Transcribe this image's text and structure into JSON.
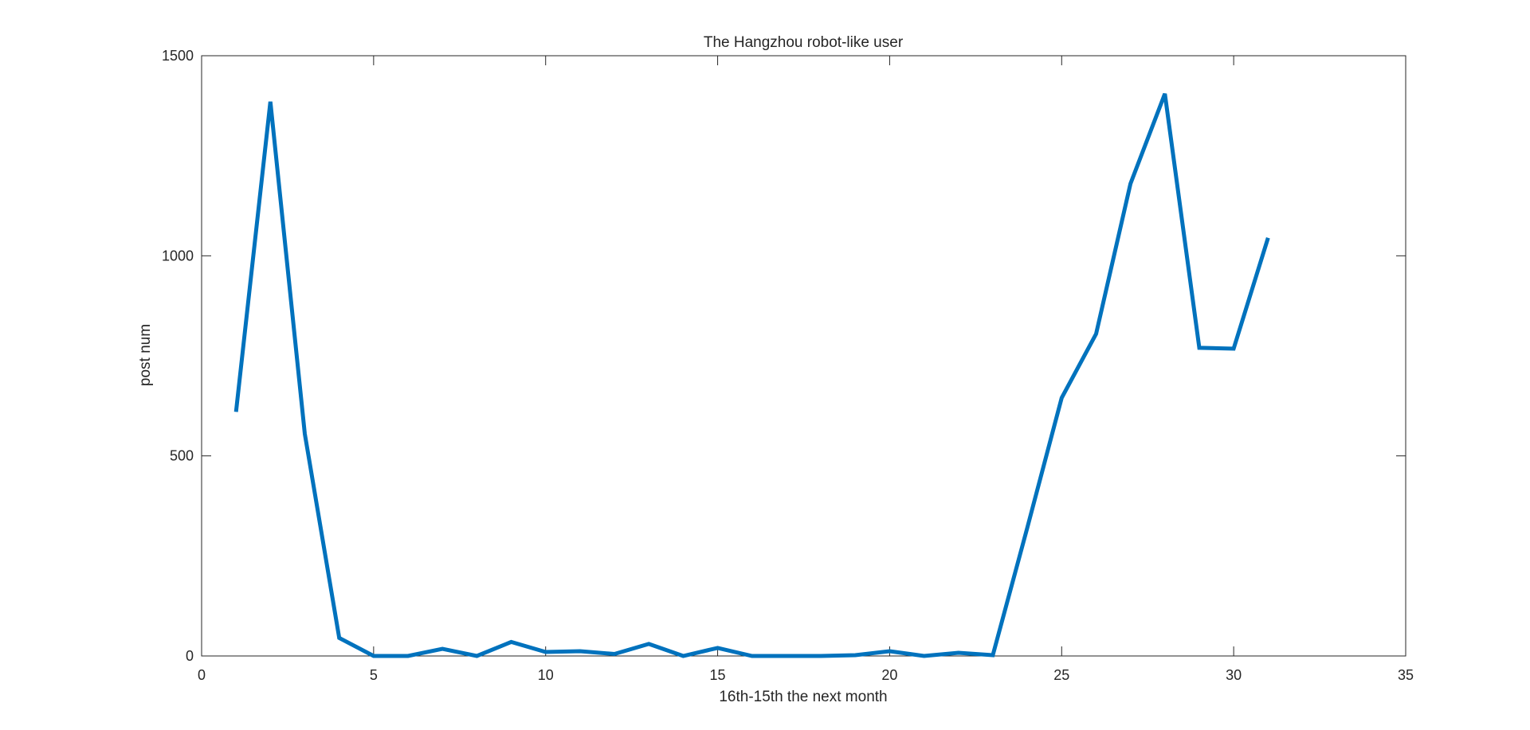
{
  "chart_data": {
    "type": "line",
    "title": "The Hangzhou robot-like user",
    "xlabel": "16th-15th the next month",
    "ylabel": "post num",
    "xlim": [
      0,
      35
    ],
    "ylim": [
      0,
      1500
    ],
    "xticks": [
      0,
      5,
      10,
      15,
      20,
      25,
      30,
      35
    ],
    "yticks": [
      0,
      500,
      1000,
      1500
    ],
    "grid": false,
    "series": [
      {
        "color": "#0072BD",
        "x": [
          1,
          2,
          3,
          4,
          5,
          6,
          7,
          8,
          9,
          10,
          11,
          12,
          13,
          14,
          15,
          16,
          17,
          18,
          19,
          20,
          21,
          22,
          23,
          24,
          25,
          26,
          27,
          28,
          29,
          30,
          31
        ],
        "y": [
          610,
          1385,
          555,
          45,
          0,
          0,
          18,
          0,
          35,
          10,
          12,
          5,
          30,
          0,
          20,
          0,
          0,
          0,
          2,
          12,
          0,
          8,
          2,
          320,
          645,
          805,
          1180,
          1405,
          770,
          768,
          1045
        ]
      }
    ]
  }
}
